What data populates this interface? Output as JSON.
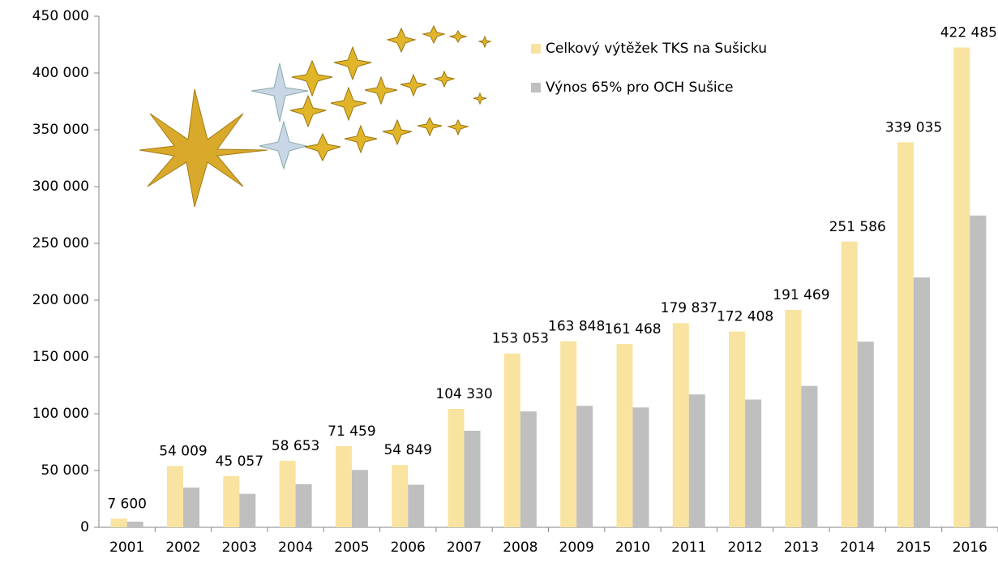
{
  "chart_data": {
    "type": "bar",
    "categories": [
      "2001",
      "2002",
      "2003",
      "2004",
      "2005",
      "2006",
      "2007",
      "2008",
      "2009",
      "2010",
      "2011",
      "2012",
      "2013",
      "2014",
      "2015",
      "2016"
    ],
    "series": [
      {
        "name": "Celkový výtěžek TKS na Sušicku",
        "color": "#f8e3a0",
        "values": [
          7600,
          54009,
          45057,
          58653,
          71459,
          54849,
          104330,
          153053,
          163848,
          161468,
          179837,
          172408,
          191469,
          251586,
          339035,
          422485
        ],
        "value_labels": [
          "7 600",
          "54 009",
          "45 057",
          "58 653",
          "71 459",
          "54 849",
          "104 330",
          "153 053",
          "163 848",
          "161 468",
          "179 837",
          "172 408",
          "191 469",
          "251 586",
          "339 035",
          "422 485"
        ]
      },
      {
        "name": "Výnos 65% pro OCH Sušice",
        "color": "#bfbfbf",
        "values": [
          5000,
          35000,
          29500,
          38000,
          50500,
          37500,
          85000,
          102000,
          107000,
          105500,
          117000,
          112500,
          124500,
          163500,
          220000,
          274500
        ]
      }
    ],
    "ylim": [
      0,
      450000
    ],
    "yticks": [
      0,
      {
        "value": 50000,
        "label": "50 000"
      },
      {
        "value": 100000,
        "label": "100 000"
      },
      {
        "value": 150000,
        "label": "150 000"
      },
      {
        "value": 200000,
        "label": "200 000"
      },
      {
        "value": 250000,
        "label": "250 000"
      },
      {
        "value": 300000,
        "label": "300 000"
      },
      {
        "value": 350000,
        "label": "350 000"
      },
      {
        "value": 400000,
        "label": "400 000"
      },
      {
        "value": 450000,
        "label": "450 000"
      }
    ],
    "legend": "top",
    "grid": false
  }
}
